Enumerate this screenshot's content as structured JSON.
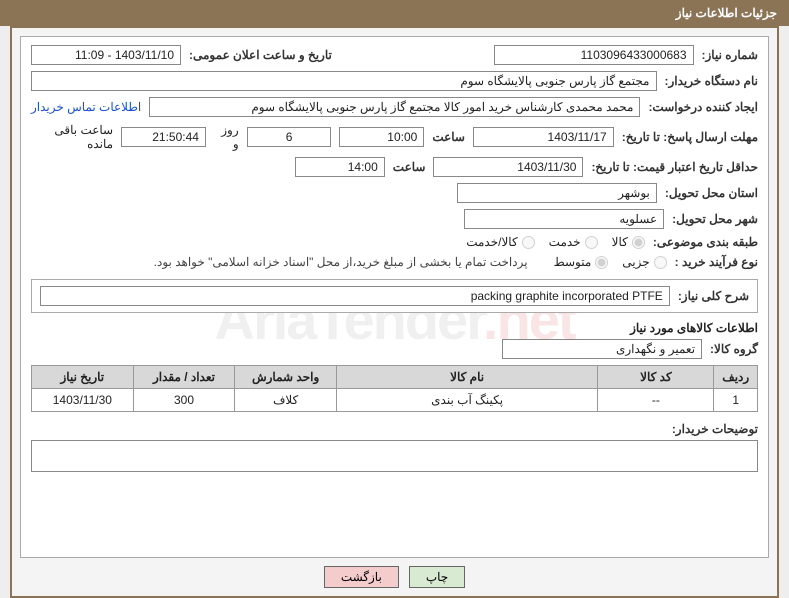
{
  "header": "جزئیات اطلاعات نیاز",
  "fields": {
    "request_number_lbl": "شماره نیاز:",
    "request_number": "1103096433000683",
    "announce_date_lbl": "تاریخ و ساعت اعلان عمومی:",
    "announce_date": "1403/11/10 - 11:09",
    "buyer_org_lbl": "نام دستگاه خریدار:",
    "buyer_org": "مجتمع گاز پارس جنوبی  پالایشگاه سوم",
    "creator_lbl": "ایجاد کننده درخواست:",
    "creator": "محمد محمدی کارشناس خرید امور کالا مجتمع گاز پارس جنوبی  پالایشگاه سوم",
    "contact_link": "اطلاعات تماس خریدار",
    "deadline_lbl": "مهلت ارسال پاسخ: تا تاریخ:",
    "deadline_date": "1403/11/17",
    "time_lbl": "ساعت",
    "deadline_time": "10:00",
    "days_val": "6",
    "days_lbl": "روز و",
    "countdown": "21:50:44",
    "remain_lbl": "ساعت باقی مانده",
    "validity_lbl": "حداقل تاریخ اعتبار قیمت: تا تاریخ:",
    "validity_date": "1403/11/30",
    "validity_time": "14:00",
    "province_lbl": "استان محل تحویل:",
    "province": "بوشهر",
    "city_lbl": "شهر محل تحویل:",
    "city": "عسلویه",
    "category_lbl": "طبقه بندی موضوعی:",
    "cat_options": [
      "کالا",
      "خدمت",
      "کالا/خدمت"
    ],
    "cat_selected": 0,
    "purchase_type_lbl": "نوع فرآیند خرید :",
    "ptype_options": [
      "جزیی",
      "متوسط"
    ],
    "ptype_selected": 1,
    "payment_note": "پرداخت تمام یا بخشی از مبلغ خرید،از محل \"اسناد خزانه اسلامی\" خواهد بود.",
    "summary_lbl": "شرح کلی نیاز:",
    "summary": "packing graphite incorporated PTFE",
    "items_header": "اطلاعات کالاهای مورد نیاز",
    "group_lbl": "گروه کالا:",
    "group": "تعمیر و نگهداری",
    "table": {
      "headers": [
        "ردیف",
        "کد کالا",
        "نام کالا",
        "واحد شمارش",
        "تعداد / مقدار",
        "تاریخ نیاز"
      ],
      "col_widths": [
        "6%",
        "16%",
        "36%",
        "14%",
        "14%",
        "14%"
      ],
      "rows": [
        [
          "1",
          "--",
          "پکینگ آب بندی",
          "کلاف",
          "300",
          "1403/11/30"
        ]
      ]
    },
    "buyer_desc_lbl": "توضیحات خریدار:"
  },
  "buttons": {
    "print": "چاپ",
    "back": "بازگشت"
  },
  "watermark": {
    "t1": "AriaTender",
    "t2": ".net"
  },
  "colors": {
    "brand": "#8b7355",
    "link": "#1a4fd6",
    "print_btn": "#d9ead3",
    "back_btn": "#f4cccc",
    "th_bg": "#d8d8d8"
  }
}
